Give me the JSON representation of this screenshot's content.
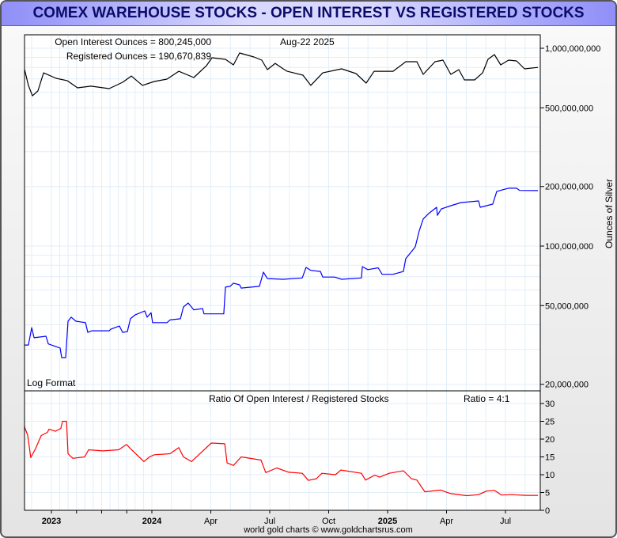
{
  "chart_data": [
    {
      "type": "line",
      "title": "COMEX WAREHOUSE STOCKS - OPEN INTEREST VS REGISTERED STOCKS",
      "scale": "log",
      "scale_label": "Log Format",
      "ylabel": "Ounces of Silver",
      "ylim": [
        18000000,
        1100000000
      ],
      "yticks": [
        {
          "value": 1000000000,
          "label": "1,000,000,000"
        },
        {
          "value": 500000000,
          "label": "500,000,000"
        },
        {
          "value": 200000000,
          "label": "200,000,000"
        },
        {
          "value": 100000000,
          "label": "100,000,000"
        },
        {
          "value": 50000000,
          "label": "50,000,000"
        },
        {
          "value": 20000000,
          "label": "20,000,000"
        }
      ],
      "annotations": {
        "open_interest": "Open Interest Ounces = 800,245,000",
        "registered": "Registered Ounces = 190,670,839",
        "date": "Aug-22  2025"
      },
      "x_unit": "decimal year",
      "series": [
        {
          "name": "Open Interest Ounces",
          "color": "#000000",
          "unit_multiplier": 1000000,
          "points": [
            [
              2022.887,
              780
            ],
            [
              2022.903,
              649
            ],
            [
              2022.92,
              575
            ],
            [
              2022.943,
              608
            ],
            [
              2022.967,
              751
            ],
            [
              2023.047,
              705
            ],
            [
              2023.157,
              686
            ],
            [
              2023.26,
              631
            ],
            [
              2023.394,
              643
            ],
            [
              2023.575,
              625
            ],
            [
              2023.709,
              673
            ],
            [
              2023.795,
              724
            ],
            [
              2023.906,
              649
            ],
            [
              2024.01,
              679
            ],
            [
              2024.064,
              698
            ],
            [
              2024.114,
              765
            ],
            [
              2024.178,
              711
            ],
            [
              2024.232,
              817
            ],
            [
              2024.255,
              895
            ],
            [
              2024.312,
              879
            ],
            [
              2024.346,
              824
            ],
            [
              2024.372,
              946
            ],
            [
              2024.433,
              904
            ],
            [
              2024.466,
              871
            ],
            [
              2024.49,
              780
            ],
            [
              2024.523,
              839
            ],
            [
              2024.557,
              787
            ],
            [
              2024.574,
              765
            ],
            [
              2024.641,
              731
            ],
            [
              2024.674,
              649
            ],
            [
              2024.725,
              751
            ],
            [
              2024.789,
              780
            ],
            [
              2024.805,
              787
            ],
            [
              2024.866,
              745
            ],
            [
              2024.909,
              667
            ],
            [
              2024.943,
              765
            ],
            [
              2025.023,
              765
            ],
            [
              2025.077,
              855
            ],
            [
              2025.124,
              855
            ],
            [
              2025.151,
              738
            ],
            [
              2025.201,
              855
            ],
            [
              2025.235,
              871
            ],
            [
              2025.268,
              738
            ],
            [
              2025.302,
              780
            ],
            [
              2025.326,
              692
            ],
            [
              2025.369,
              692
            ],
            [
              2025.403,
              751
            ],
            [
              2025.426,
              879
            ],
            [
              2025.453,
              929
            ],
            [
              2025.48,
              824
            ],
            [
              2025.513,
              871
            ],
            [
              2025.547,
              863
            ],
            [
              2025.581,
              787
            ],
            [
              2025.638,
              800.245
            ]
          ]
        },
        {
          "name": "Registered Ounces",
          "color": "#0000ff",
          "unit_multiplier": 1000000,
          "points": [
            [
              2022.887,
              31.6
            ],
            [
              2022.903,
              31.6
            ],
            [
              2022.917,
              38.7
            ],
            [
              2022.927,
              34.4
            ],
            [
              2022.977,
              35
            ],
            [
              2022.987,
              32
            ],
            [
              2023.087,
              30.5
            ],
            [
              2023.102,
              27.3
            ],
            [
              2023.142,
              27.3
            ],
            [
              2023.165,
              41.7
            ],
            [
              2023.197,
              43.7
            ],
            [
              2023.244,
              41.7
            ],
            [
              2023.339,
              41
            ],
            [
              2023.362,
              36.6
            ],
            [
              2023.402,
              37.3
            ],
            [
              2023.575,
              37.3
            ],
            [
              2023.591,
              38
            ],
            [
              2023.677,
              39.4
            ],
            [
              2023.709,
              36.6
            ],
            [
              2023.756,
              36.9
            ],
            [
              2023.787,
              42.9
            ],
            [
              2023.835,
              44.9
            ],
            [
              2023.929,
              47
            ],
            [
              2023.953,
              43.7
            ],
            [
              2023.992,
              46
            ],
            [
              2024.003,
              41
            ],
            [
              2024.064,
              41
            ],
            [
              2024.077,
              42.3
            ],
            [
              2024.121,
              42.9
            ],
            [
              2024.134,
              49.2
            ],
            [
              2024.154,
              51.5
            ],
            [
              2024.178,
              47.6
            ],
            [
              2024.215,
              48.3
            ],
            [
              2024.221,
              45.4
            ],
            [
              2024.305,
              45.4
            ],
            [
              2024.312,
              62
            ],
            [
              2024.332,
              62.6
            ],
            [
              2024.346,
              64.9
            ],
            [
              2024.372,
              63.7
            ],
            [
              2024.379,
              61.3
            ],
            [
              2024.456,
              62.6
            ],
            [
              2024.473,
              73.8
            ],
            [
              2024.49,
              68.5
            ],
            [
              2024.557,
              67.9
            ],
            [
              2024.638,
              69
            ],
            [
              2024.654,
              78
            ],
            [
              2024.674,
              75.4
            ],
            [
              2024.715,
              74.4
            ],
            [
              2024.725,
              69.7
            ],
            [
              2024.775,
              69.7
            ],
            [
              2024.805,
              67.9
            ],
            [
              2024.889,
              69
            ],
            [
              2024.893,
              78.7
            ],
            [
              2024.916,
              76
            ],
            [
              2024.96,
              77.6
            ],
            [
              2024.977,
              72
            ],
            [
              2025.023,
              72
            ],
            [
              2025.067,
              74.4
            ],
            [
              2025.077,
              86.3
            ],
            [
              2025.117,
              99
            ],
            [
              2025.134,
              119
            ],
            [
              2025.151,
              137
            ],
            [
              2025.174,
              146
            ],
            [
              2025.208,
              157
            ],
            [
              2025.211,
              143
            ],
            [
              2025.228,
              154
            ],
            [
              2025.268,
              160
            ],
            [
              2025.312,
              166
            ],
            [
              2025.386,
              169
            ],
            [
              2025.393,
              157
            ],
            [
              2025.446,
              163
            ],
            [
              2025.463,
              189
            ],
            [
              2025.513,
              196
            ],
            [
              2025.547,
              196
            ],
            [
              2025.56,
              191
            ],
            [
              2025.638,
              190.670839
            ]
          ]
        }
      ]
    },
    {
      "type": "line",
      "title": "Ratio Of Open Interest / Registered Stocks",
      "annotation": "Ratio = 4:1",
      "ylim": [
        0,
        30
      ],
      "yticks": [
        0,
        5,
        10,
        15,
        20,
        25,
        30
      ],
      "x_unit": "decimal year",
      "series": [
        {
          "name": "Ratio",
          "color": "#ff0000",
          "points": [
            [
              2022.885,
              23.7
            ],
            [
              2022.9,
              21.1
            ],
            [
              2022.913,
              14.8
            ],
            [
              2022.933,
              17.3
            ],
            [
              2022.957,
              21
            ],
            [
              2022.983,
              21.9
            ],
            [
              2022.99,
              22.8
            ],
            [
              2023.039,
              22.2
            ],
            [
              2023.094,
              23
            ],
            [
              2023.11,
              25
            ],
            [
              2023.15,
              25
            ],
            [
              2023.165,
              15.9
            ],
            [
              2023.213,
              14.6
            ],
            [
              2023.331,
              15
            ],
            [
              2023.37,
              17
            ],
            [
              2023.512,
              16.7
            ],
            [
              2023.669,
              17
            ],
            [
              2023.748,
              18.5
            ],
            [
              2023.787,
              17.3
            ],
            [
              2023.921,
              13.7
            ],
            [
              2023.976,
              15
            ],
            [
              2024.01,
              15.6
            ],
            [
              2024.077,
              15.9
            ],
            [
              2024.114,
              17.6
            ],
            [
              2024.134,
              15
            ],
            [
              2024.168,
              13.7
            ],
            [
              2024.218,
              16.8
            ],
            [
              2024.252,
              18.9
            ],
            [
              2024.309,
              18.7
            ],
            [
              2024.319,
              13.3
            ],
            [
              2024.346,
              12.6
            ],
            [
              2024.379,
              15
            ],
            [
              2024.463,
              14.1
            ],
            [
              2024.483,
              10.6
            ],
            [
              2024.53,
              11.9
            ],
            [
              2024.581,
              10.7
            ],
            [
              2024.638,
              10.4
            ],
            [
              2024.664,
              8.4
            ],
            [
              2024.698,
              8.9
            ],
            [
              2024.721,
              10.4
            ],
            [
              2024.779,
              10
            ],
            [
              2024.802,
              11.3
            ],
            [
              2024.889,
              10.4
            ],
            [
              2024.906,
              8.5
            ],
            [
              2024.946,
              9.9
            ],
            [
              2024.966,
              9.3
            ],
            [
              2025.007,
              10.4
            ],
            [
              2025.067,
              11.1
            ],
            [
              2025.101,
              8.9
            ],
            [
              2025.124,
              8.5
            ],
            [
              2025.158,
              5.2
            ],
            [
              2025.225,
              5.7
            ],
            [
              2025.268,
              4.7
            ],
            [
              2025.336,
              4.1
            ],
            [
              2025.386,
              4.4
            ],
            [
              2025.419,
              5.4
            ],
            [
              2025.453,
              5.6
            ],
            [
              2025.483,
              4.3
            ],
            [
              2025.527,
              4.4
            ],
            [
              2025.587,
              4.2
            ],
            [
              2025.638,
              4.2
            ]
          ]
        }
      ]
    }
  ],
  "x_ticks": [
    {
      "value": 2023.0,
      "label": "2023",
      "bold": true
    },
    {
      "value": 2024.0,
      "label": "2024",
      "bold": true
    },
    {
      "value": 2024.25,
      "label": "Apr"
    },
    {
      "value": 2024.5,
      "label": "Jul"
    },
    {
      "value": 2024.75,
      "label": "Oct"
    },
    {
      "value": 2025.0,
      "label": "2025",
      "bold": true
    },
    {
      "value": 2025.25,
      "label": "Apr"
    },
    {
      "value": 2025.5,
      "label": "Jul"
    }
  ],
  "credit": "world gold charts © www.goldchartsrus.com"
}
